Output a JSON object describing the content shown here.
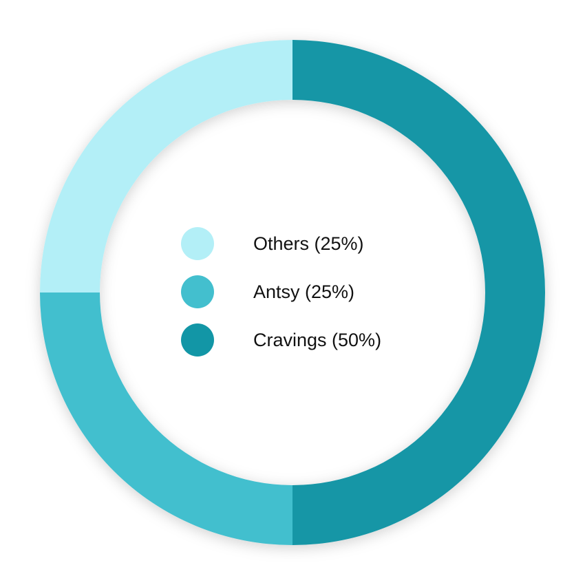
{
  "chart_data": {
    "type": "pie",
    "variant": "donut",
    "legend_position": "center",
    "slices": [
      {
        "label": "Cravings (50%)",
        "value": 50,
        "color": "#1296a6"
      },
      {
        "label": "Antsy (25%)",
        "value": 25,
        "color": "#43bfce"
      },
      {
        "label": "Others (25%)",
        "value": 25,
        "color": "#b3eff7"
      }
    ],
    "legend": [
      {
        "label": "Others (25%)",
        "color": "#b3eff7"
      },
      {
        "label": "Antsy (25%)",
        "color": "#43bfce"
      },
      {
        "label": "Cravings (50%)",
        "color": "#1296a6"
      }
    ]
  }
}
